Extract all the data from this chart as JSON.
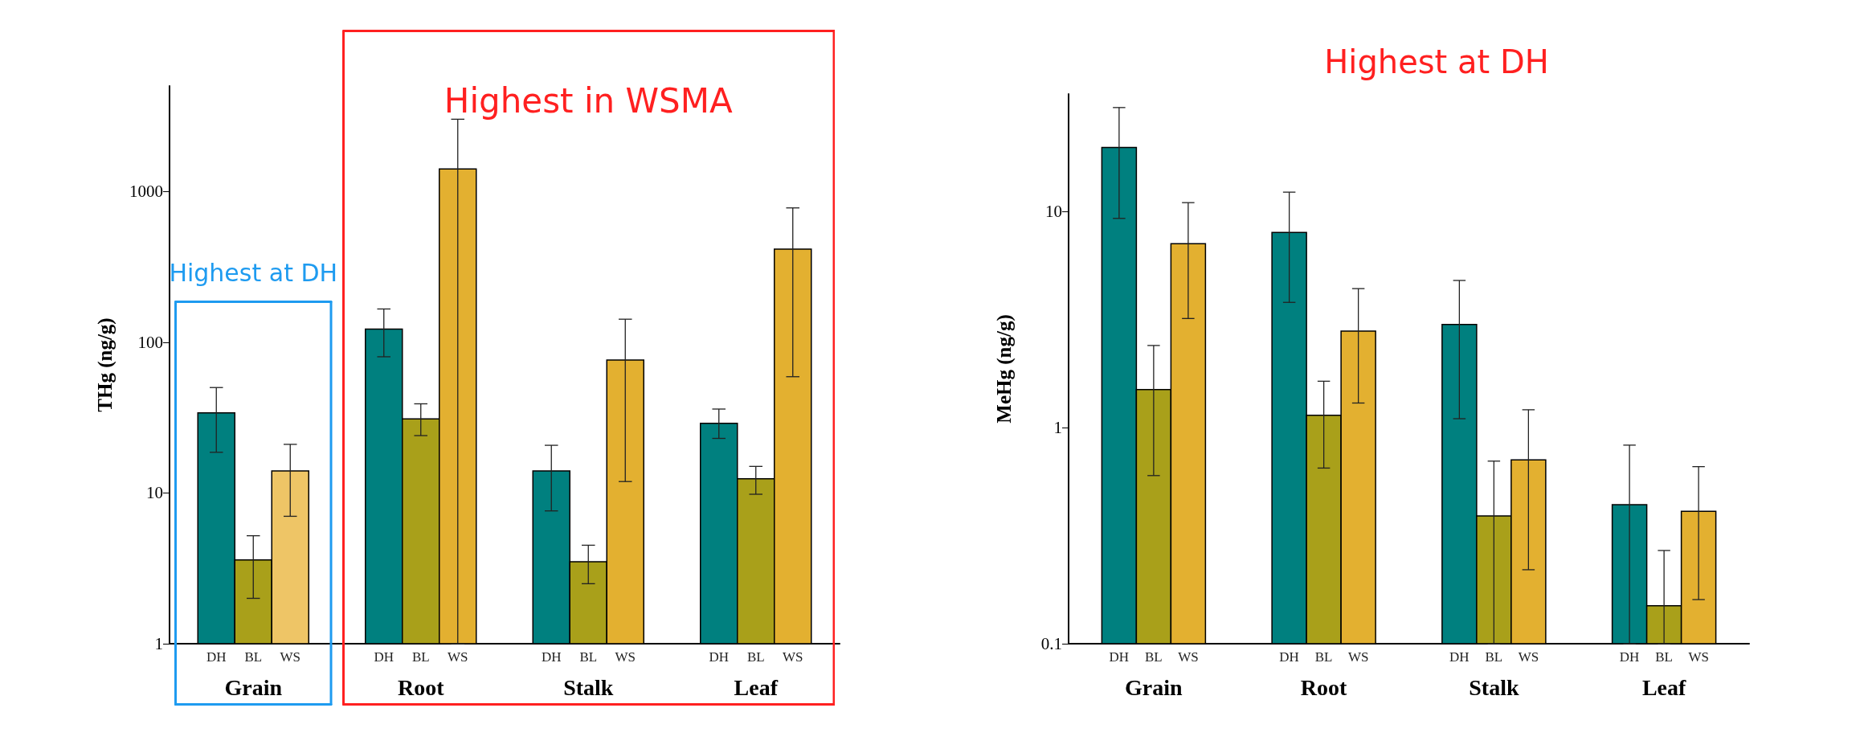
{
  "chart_data": [
    {
      "type": "bar",
      "ylabel": "THg (ng/g)",
      "categories": [
        "Grain",
        "Root",
        "Stalk",
        "Leaf"
      ],
      "log": true,
      "ylim": [
        1,
        5000
      ],
      "yticks": [
        1,
        10,
        100,
        1000
      ],
      "annotations": [
        "Highest at DH",
        "Highest in WSMA"
      ],
      "series": [
        {
          "name": "DH",
          "color": "#00807f",
          "values": [
            34,
            122,
            14,
            29
          ],
          "errors": [
            [
              18.6,
              50
            ],
            [
              80,
              166
            ],
            [
              7.6,
              20.7
            ],
            [
              23,
              36
            ]
          ]
        },
        {
          "name": "BL",
          "color": "#a9a01a",
          "values": [
            3.6,
            31,
            3.5,
            12.4
          ],
          "errors": [
            [
              2.0,
              5.2
            ],
            [
              24,
              39
            ],
            [
              2.5,
              4.5
            ],
            [
              9.8,
              15
            ]
          ]
        },
        {
          "name": "WS",
          "colors": [
            "#eec566",
            "#e3b030",
            "#e3b030",
            "#e3b030"
          ],
          "values": [
            14,
            1410,
            76,
            414
          ],
          "errors": [
            [
              7.0,
              21
            ],
            [
              1,
              3010
            ],
            [
              11.9,
              142
            ],
            [
              59,
              777
            ]
          ]
        }
      ]
    },
    {
      "type": "bar",
      "title": "Highest at DH",
      "ylabel": "MeHg (ng/g)",
      "categories": [
        "Grain",
        "Root",
        "Stalk",
        "Leaf"
      ],
      "log": true,
      "ylim": [
        0.1,
        35
      ],
      "yticks": [
        0.1,
        1,
        10
      ],
      "series": [
        {
          "name": "DH",
          "color": "#00807f",
          "values": [
            19.8,
            8.0,
            3.0,
            0.44
          ],
          "errors": [
            [
              9.3,
              30.3
            ],
            [
              3.8,
              12.3
            ],
            [
              1.1,
              4.8
            ],
            [
              0.1,
              0.83
            ]
          ]
        },
        {
          "name": "BL",
          "color": "#a9a01a",
          "values": [
            1.5,
            1.14,
            0.39,
            0.15
          ],
          "errors": [
            [
              0.6,
              2.4
            ],
            [
              0.65,
              1.64
            ],
            [
              0.1,
              0.7
            ],
            [
              0.1,
              0.27
            ]
          ]
        },
        {
          "name": "WS",
          "color": "#e3b030",
          "values": [
            7.1,
            2.8,
            0.71,
            0.41
          ],
          "errors": [
            [
              3.2,
              11.0
            ],
            [
              1.3,
              4.4
            ],
            [
              0.22,
              1.21
            ],
            [
              0.16,
              0.66
            ]
          ]
        }
      ]
    }
  ]
}
